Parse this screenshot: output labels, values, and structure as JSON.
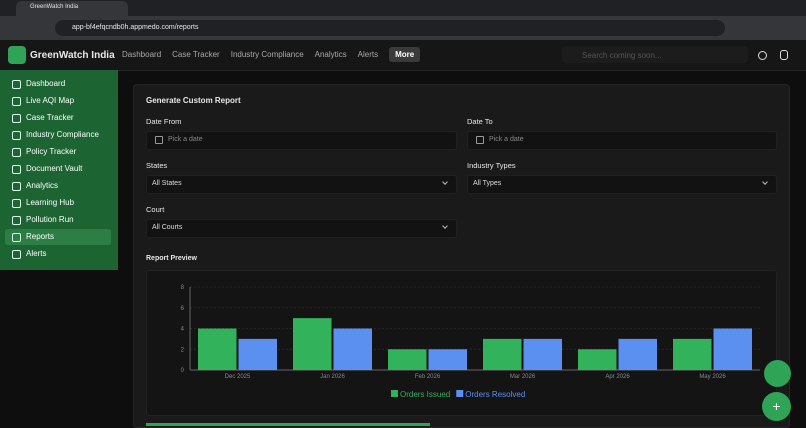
{
  "browser": {
    "tab_title": "GreenWatch India",
    "url": "app-bf4efqcndb0h.appmedo.com/reports"
  },
  "header": {
    "brand": "GreenWatch India",
    "nav": [
      "Dashboard",
      "Case Tracker",
      "Industry Compliance",
      "Analytics",
      "Alerts",
      "More"
    ],
    "search_placeholder": "Search coming soon..."
  },
  "sidebar": {
    "items": [
      "Dashboard",
      "Live AQI Map",
      "Case Tracker",
      "Industry Compliance",
      "Policy Tracker",
      "Document Vault",
      "Analytics",
      "Learning Hub",
      "Pollution Run",
      "Reports",
      "Alerts"
    ],
    "active": 9
  },
  "form": {
    "title": "Generate Custom Report",
    "fields": [
      {
        "label": "Date From",
        "value": "Pick a date",
        "kind": "date"
      },
      {
        "label": "Date To",
        "value": "Pick a date",
        "kind": "date"
      },
      {
        "label": "States",
        "value": "All States",
        "kind": "select"
      },
      {
        "label": "Industry Types",
        "value": "All Types",
        "kind": "select"
      },
      {
        "label": "Court",
        "value": "All Courts",
        "kind": "select"
      }
    ]
  },
  "report_preview": {
    "title": "Report Preview",
    "chart": {
      "type": "bar",
      "categories": [
        "Dec 2025",
        "Jan 2026",
        "Feb 2026",
        "Mar 2026",
        "Apr 2026",
        "May 2026"
      ],
      "series": [
        {
          "name": "Orders Issued",
          "color": "#33b25c",
          "values": [
            4,
            5,
            2,
            3,
            2,
            3
          ]
        },
        {
          "name": "Orders Resolved",
          "color": "#5b8ff0",
          "values": [
            3,
            4,
            2,
            3,
            3,
            4
          ]
        }
      ],
      "ylim": [
        0,
        8
      ],
      "yticks": [
        0,
        2,
        4,
        6,
        8
      ],
      "grid": true
    }
  }
}
